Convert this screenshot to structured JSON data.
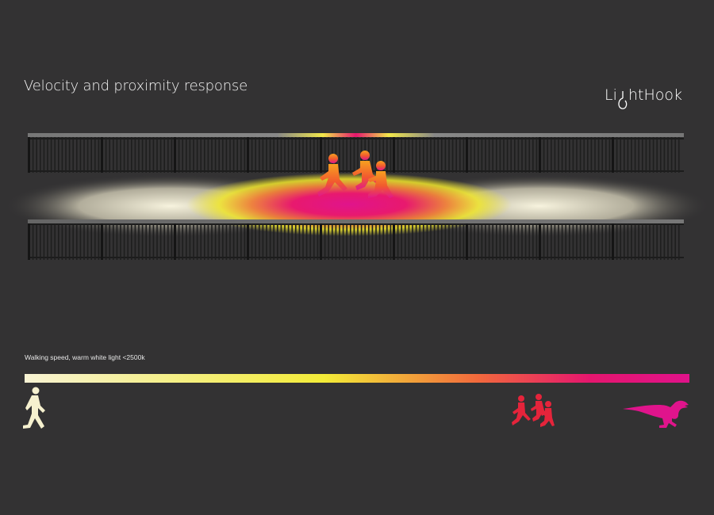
{
  "title": "Velocity and proximity response",
  "logo": {
    "parts": [
      "Li",
      "htHook"
    ],
    "full": "LightHook"
  },
  "legend": {
    "caption": "Walking speed, warm white light <2500k",
    "colors": [
      "#f8f3d4",
      "#f3ec38",
      "#f26a3c",
      "#e5166e",
      "#e0128a"
    ]
  },
  "icons": {
    "walker": "walking-person-icon",
    "runners": "running-children-icon",
    "raptor": "dinosaur-icon"
  },
  "colors": {
    "background": "#333233",
    "warm_white": "#f6f1cf",
    "yellow": "#f2ea2e",
    "red": "#e5243b",
    "magenta": "#e0148c"
  }
}
